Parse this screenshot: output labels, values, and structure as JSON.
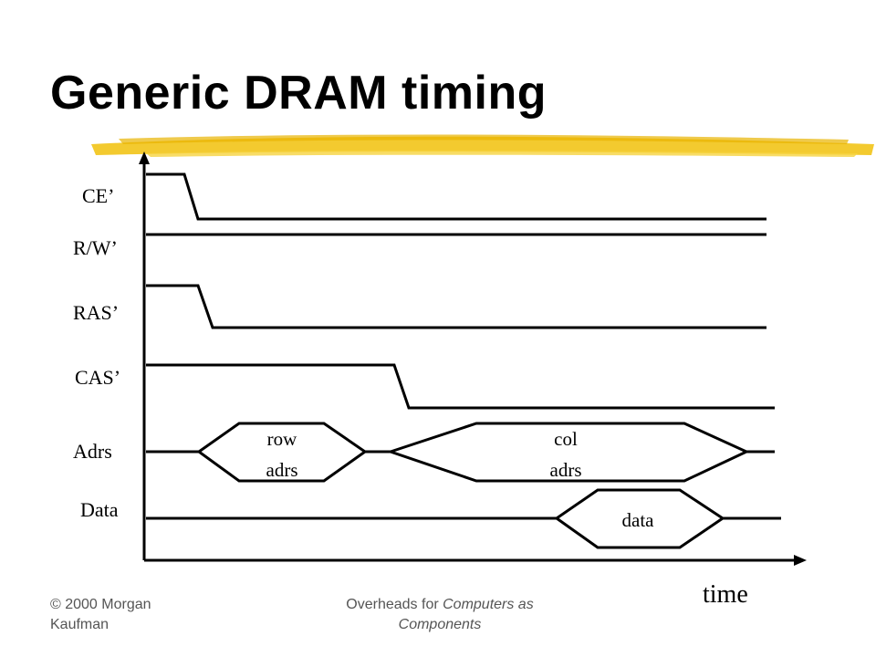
{
  "title": "Generic DRAM timing",
  "signals": {
    "ce": "CE’",
    "rw": "R/W’",
    "ras": "RAS’",
    "cas": "CAS’",
    "adrs": "Adrs",
    "data": "Data"
  },
  "boxes": {
    "row_line1": "row",
    "row_line2": "adrs",
    "col_line1": "col",
    "col_line2": "adrs",
    "data": "data"
  },
  "axis": {
    "time": "time"
  },
  "footer": {
    "left_line1": "© 2000 Morgan",
    "left_line2": "Kaufman",
    "center_prefix": "Overheads for ",
    "center_italic1": "Computers as",
    "center_italic2": "Components"
  },
  "colors": {
    "highlight": "#f2c418",
    "line": "#000000"
  }
}
